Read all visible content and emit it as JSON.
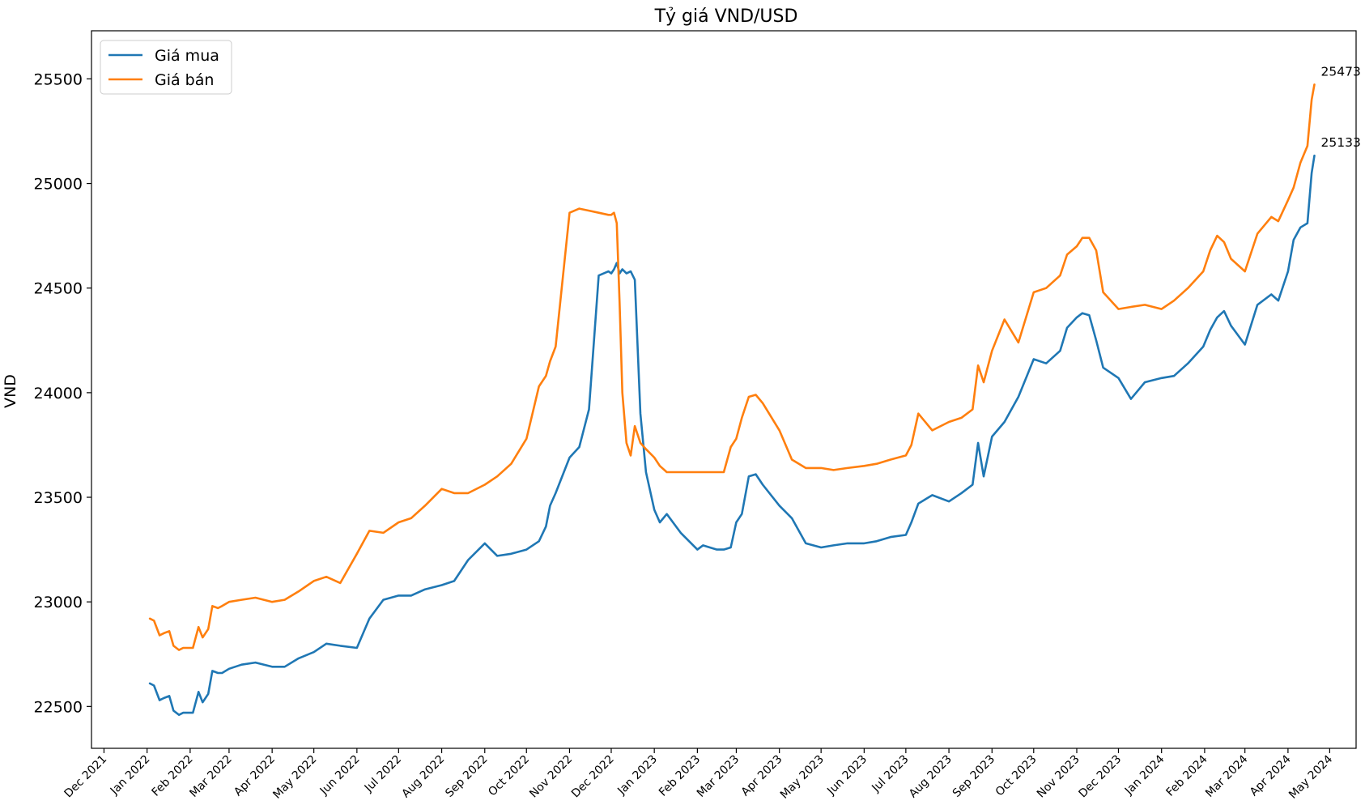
{
  "chart_data": {
    "type": "line",
    "title": "Tỷ giá VND/USD",
    "xlabel": "",
    "ylabel": "VND",
    "ylim": [
      22300,
      25730
    ],
    "xlim": [
      "2021-11-22",
      "2024-05-20"
    ],
    "grid": false,
    "legend_position": "upper-left",
    "x_ticks": [
      "2021-12-01",
      "2022-01-01",
      "2022-02-01",
      "2022-03-01",
      "2022-04-01",
      "2022-05-01",
      "2022-06-01",
      "2022-07-01",
      "2022-08-01",
      "2022-09-01",
      "2022-10-01",
      "2022-11-01",
      "2022-12-01",
      "2023-01-01",
      "2023-02-01",
      "2023-03-01",
      "2023-04-01",
      "2023-05-01",
      "2023-06-01",
      "2023-07-01",
      "2023-08-01",
      "2023-09-01",
      "2023-10-01",
      "2023-11-01",
      "2023-12-01",
      "2024-01-01",
      "2024-02-01",
      "2024-03-01",
      "2024-04-01",
      "2024-05-01"
    ],
    "x_tick_labels": [
      "Dec 2021",
      "Jan 2022",
      "Feb 2022",
      "Mar 2022",
      "Apr 2022",
      "May 2022",
      "Jun 2022",
      "Jul 2022",
      "Aug 2022",
      "Sep 2022",
      "Oct 2022",
      "Nov 2022",
      "Dec 2022",
      "Jan 2023",
      "Feb 2023",
      "Mar 2023",
      "Apr 2023",
      "May 2023",
      "Jun 2023",
      "Jul 2023",
      "Aug 2023",
      "Sep 2023",
      "Oct 2023",
      "Nov 2023",
      "Dec 2023",
      "Jan 2024",
      "Feb 2024",
      "Mar 2024",
      "Apr 2024",
      "May 2024"
    ],
    "y_ticks": [
      22500,
      23000,
      23500,
      24000,
      24500,
      25000,
      25500
    ],
    "series": [
      {
        "name": "Giá mua",
        "color": "#1f77b4",
        "x": [
          "2022-01-03",
          "2022-01-06",
          "2022-01-10",
          "2022-01-13",
          "2022-01-17",
          "2022-01-20",
          "2022-01-24",
          "2022-01-27",
          "2022-01-31",
          "2022-02-03",
          "2022-02-07",
          "2022-02-10",
          "2022-02-14",
          "2022-02-17",
          "2022-02-21",
          "2022-02-24",
          "2022-03-01",
          "2022-03-10",
          "2022-03-20",
          "2022-04-01",
          "2022-04-10",
          "2022-04-20",
          "2022-05-01",
          "2022-05-10",
          "2022-05-20",
          "2022-06-01",
          "2022-06-10",
          "2022-06-20",
          "2022-07-01",
          "2022-07-10",
          "2022-07-20",
          "2022-08-01",
          "2022-08-10",
          "2022-08-20",
          "2022-09-01",
          "2022-09-10",
          "2022-09-20",
          "2022-10-01",
          "2022-10-10",
          "2022-10-15",
          "2022-10-18",
          "2022-10-22",
          "2022-11-01",
          "2022-11-08",
          "2022-11-15",
          "2022-11-22",
          "2022-11-29",
          "2022-12-01",
          "2022-12-03",
          "2022-12-05",
          "2022-12-07",
          "2022-12-09",
          "2022-12-12",
          "2022-12-15",
          "2022-12-18",
          "2022-12-22",
          "2022-12-26",
          "2023-01-01",
          "2023-01-05",
          "2023-01-10",
          "2023-01-20",
          "2023-02-01",
          "2023-02-05",
          "2023-02-10",
          "2023-02-15",
          "2023-02-20",
          "2023-02-25",
          "2023-03-01",
          "2023-03-05",
          "2023-03-10",
          "2023-03-15",
          "2023-03-20",
          "2023-04-01",
          "2023-04-10",
          "2023-04-20",
          "2023-05-01",
          "2023-05-10",
          "2023-05-20",
          "2023-06-01",
          "2023-06-10",
          "2023-06-20",
          "2023-07-01",
          "2023-07-05",
          "2023-07-10",
          "2023-07-20",
          "2023-08-01",
          "2023-08-10",
          "2023-08-18",
          "2023-08-22",
          "2023-08-26",
          "2023-09-01",
          "2023-09-10",
          "2023-09-20",
          "2023-10-01",
          "2023-10-10",
          "2023-10-20",
          "2023-10-25",
          "2023-11-01",
          "2023-11-05",
          "2023-11-10",
          "2023-11-15",
          "2023-11-20",
          "2023-12-01",
          "2023-12-10",
          "2023-12-20",
          "2024-01-01",
          "2024-01-10",
          "2024-01-20",
          "2024-01-31",
          "2024-02-05",
          "2024-02-10",
          "2024-02-15",
          "2024-02-20",
          "2024-03-01",
          "2024-03-10",
          "2024-03-20",
          "2024-03-25",
          "2024-04-01",
          "2024-04-05",
          "2024-04-10",
          "2024-04-15",
          "2024-04-18",
          "2024-04-20"
        ],
        "values": [
          22610,
          22600,
          22530,
          22540,
          22550,
          22480,
          22460,
          22470,
          22470,
          22470,
          22570,
          22520,
          22560,
          22670,
          22660,
          22660,
          22680,
          22700,
          22710,
          22690,
          22690,
          22730,
          22760,
          22800,
          22790,
          22780,
          22920,
          23010,
          23030,
          23030,
          23060,
          23080,
          23100,
          23200,
          23280,
          23220,
          23230,
          23250,
          23290,
          23360,
          23460,
          23520,
          23690,
          23740,
          23920,
          24560,
          24580,
          24570,
          24590,
          24620,
          24570,
          24590,
          24570,
          24580,
          24540,
          23900,
          23620,
          23440,
          23380,
          23420,
          23330,
          23250,
          23270,
          23260,
          23250,
          23250,
          23260,
          23380,
          23420,
          23600,
          23610,
          23560,
          23460,
          23400,
          23280,
          23260,
          23270,
          23280,
          23280,
          23290,
          23310,
          23320,
          23380,
          23470,
          23510,
          23480,
          23520,
          23560,
          23760,
          23600,
          23790,
          23860,
          23980,
          24160,
          24140,
          24200,
          24310,
          24360,
          24380,
          24370,
          24250,
          24120,
          24070,
          23970,
          24050,
          24070,
          24080,
          24140,
          24220,
          24300,
          24360,
          24390,
          24320,
          24230,
          24420,
          24470,
          24440,
          24580,
          24730,
          24790,
          24810,
          25050,
          25133
        ]
      },
      {
        "name": "Giá bán",
        "color": "#ff7f0e",
        "x": [
          "2022-01-03",
          "2022-01-06",
          "2022-01-10",
          "2022-01-13",
          "2022-01-17",
          "2022-01-20",
          "2022-01-24",
          "2022-01-27",
          "2022-01-31",
          "2022-02-03",
          "2022-02-07",
          "2022-02-10",
          "2022-02-14",
          "2022-02-17",
          "2022-02-21",
          "2022-02-24",
          "2022-03-01",
          "2022-03-10",
          "2022-03-20",
          "2022-04-01",
          "2022-04-10",
          "2022-04-20",
          "2022-05-01",
          "2022-05-10",
          "2022-05-20",
          "2022-06-01",
          "2022-06-10",
          "2022-06-20",
          "2022-07-01",
          "2022-07-10",
          "2022-07-20",
          "2022-08-01",
          "2022-08-10",
          "2022-08-20",
          "2022-09-01",
          "2022-09-10",
          "2022-09-20",
          "2022-10-01",
          "2022-10-10",
          "2022-10-15",
          "2022-10-18",
          "2022-10-22",
          "2022-11-01",
          "2022-11-08",
          "2022-11-15",
          "2022-11-22",
          "2022-11-29",
          "2022-12-01",
          "2022-12-03",
          "2022-12-05",
          "2022-12-07",
          "2022-12-09",
          "2022-12-12",
          "2022-12-15",
          "2022-12-18",
          "2022-12-22",
          "2022-12-26",
          "2023-01-01",
          "2023-01-05",
          "2023-01-10",
          "2023-01-20",
          "2023-02-01",
          "2023-02-05",
          "2023-02-10",
          "2023-02-15",
          "2023-02-20",
          "2023-02-25",
          "2023-03-01",
          "2023-03-05",
          "2023-03-10",
          "2023-03-15",
          "2023-03-20",
          "2023-04-01",
          "2023-04-10",
          "2023-04-20",
          "2023-05-01",
          "2023-05-10",
          "2023-05-20",
          "2023-06-01",
          "2023-06-10",
          "2023-06-20",
          "2023-07-01",
          "2023-07-05",
          "2023-07-10",
          "2023-07-20",
          "2023-08-01",
          "2023-08-10",
          "2023-08-18",
          "2023-08-22",
          "2023-08-26",
          "2023-09-01",
          "2023-09-10",
          "2023-09-20",
          "2023-10-01",
          "2023-10-10",
          "2023-10-20",
          "2023-10-25",
          "2023-11-01",
          "2023-11-05",
          "2023-11-10",
          "2023-11-15",
          "2023-11-20",
          "2023-12-01",
          "2023-12-10",
          "2023-12-20",
          "2024-01-01",
          "2024-01-10",
          "2024-01-20",
          "2024-01-31",
          "2024-02-05",
          "2024-02-10",
          "2024-02-15",
          "2024-02-20",
          "2024-03-01",
          "2024-03-10",
          "2024-03-20",
          "2024-03-25",
          "2024-04-01",
          "2024-04-05",
          "2024-04-10",
          "2024-04-15",
          "2024-04-18",
          "2024-04-20"
        ],
        "values": [
          22920,
          22910,
          22840,
          22850,
          22860,
          22790,
          22770,
          22780,
          22780,
          22780,
          22880,
          22830,
          22870,
          22980,
          22970,
          22980,
          23000,
          23010,
          23020,
          23000,
          23010,
          23050,
          23100,
          23120,
          23090,
          23230,
          23340,
          23330,
          23380,
          23400,
          23460,
          23540,
          23520,
          23520,
          23560,
          23600,
          23660,
          23780,
          24030,
          24080,
          24150,
          24220,
          24860,
          24880,
          24870,
          24860,
          24850,
          24850,
          24860,
          24810,
          24430,
          24000,
          23760,
          23700,
          23840,
          23760,
          23730,
          23690,
          23650,
          23620,
          23620,
          23620,
          23620,
          23620,
          23620,
          23620,
          23740,
          23780,
          23880,
          23980,
          23990,
          23950,
          23820,
          23680,
          23640,
          23640,
          23630,
          23640,
          23650,
          23660,
          23680,
          23700,
          23750,
          23900,
          23820,
          23860,
          23880,
          23920,
          24130,
          24050,
          24200,
          24350,
          24240,
          24480,
          24500,
          24560,
          24660,
          24700,
          24740,
          24740,
          24680,
          24480,
          24400,
          24410,
          24420,
          24400,
          24440,
          24500,
          24580,
          24680,
          24750,
          24720,
          24640,
          24580,
          24760,
          24840,
          24820,
          24920,
          24980,
          25100,
          25180,
          25400,
          25473
        ]
      }
    ],
    "annotations": [
      {
        "text": "25473",
        "x": "2024-04-20",
        "y": 25473,
        "color": "#ff7f0e"
      },
      {
        "text": "25133",
        "x": "2024-04-20",
        "y": 25133,
        "color": "#1f77b4"
      }
    ]
  }
}
